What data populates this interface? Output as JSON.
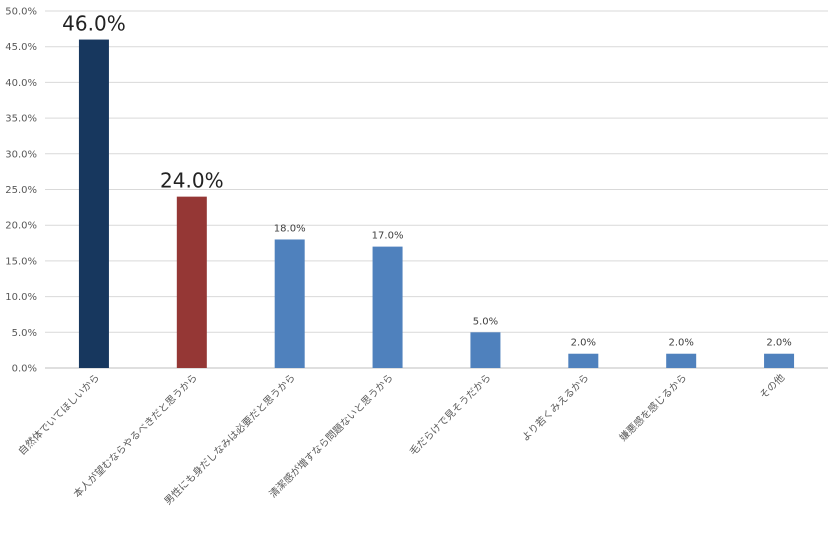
{
  "chart_data": {
    "type": "bar",
    "title": "",
    "xlabel": "",
    "ylabel": "",
    "ylim": [
      0,
      50
    ],
    "y_tick_step": 5,
    "y_tick_format": "percent_one_decimal",
    "grid": true,
    "legend": "none",
    "categories": [
      "自然体でいてほしいから",
      "本人が望むならやるべきだと思うから",
      "男性にも身だしなみは必要だと思うから",
      "清潔感が増すなら問題ないと思うから",
      "毛だらけで見そうだから",
      "より若くみえるから",
      "嫌悪感を感じるから",
      "その他"
    ],
    "values": [
      46.0,
      24.0,
      18.0,
      17.0,
      5.0,
      2.0,
      2.0,
      2.0
    ],
    "data_labels": [
      "46.0%",
      "24.0%",
      "18.0%",
      "17.0%",
      "5.0%",
      "2.0%",
      "2.0%",
      "2.0%"
    ],
    "highlighted_labels": [
      true,
      true,
      false,
      false,
      false,
      false,
      false,
      false
    ],
    "colors": [
      "#17375e",
      "#953735",
      "#4f81bd",
      "#4f81bd",
      "#4f81bd",
      "#4f81bd",
      "#4f81bd",
      "#4f81bd"
    ]
  }
}
